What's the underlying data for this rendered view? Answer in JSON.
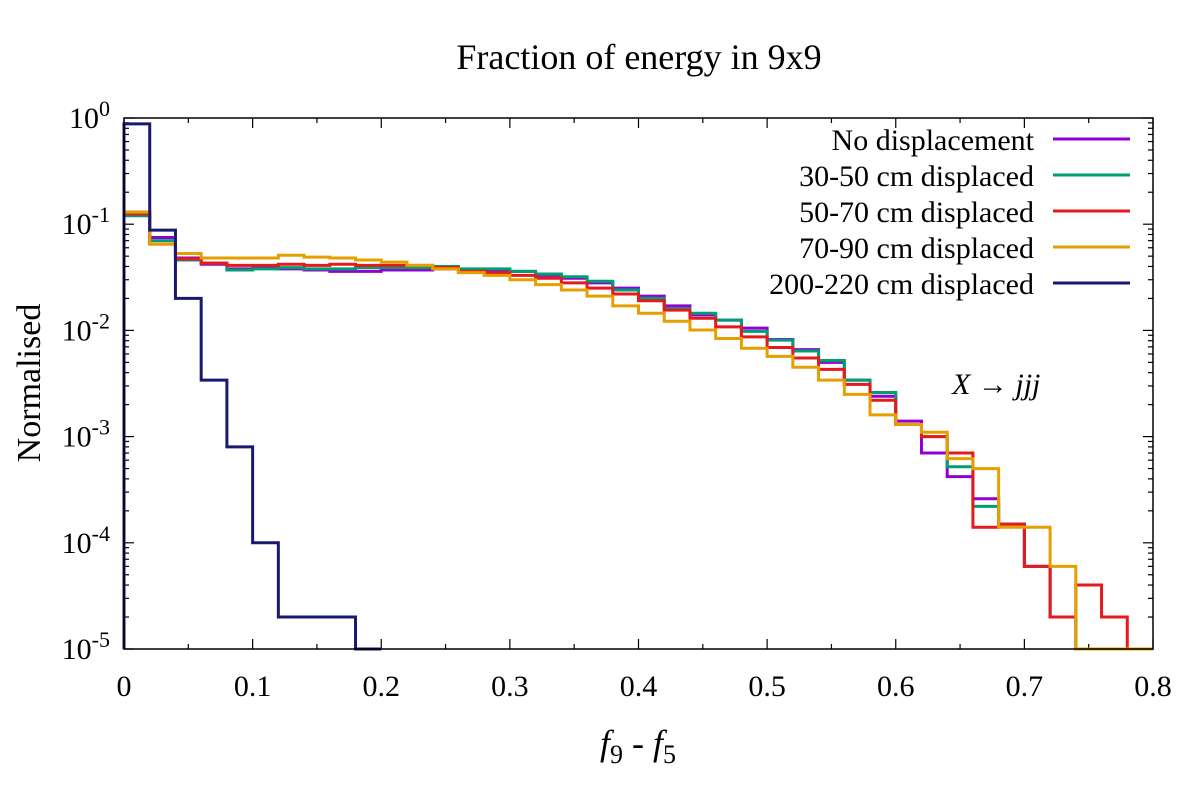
{
  "chart_data": {
    "type": "line",
    "step": true,
    "title": "Fraction of energy in 9x9",
    "xlabel_main": "f",
    "xlabel_sub1": "9",
    "xlabel_sep": " - ",
    "xlabel_main2": "f",
    "xlabel_sub2": "5",
    "ylabel": "Normalised",
    "y_scale": "log",
    "xlim": [
      0,
      0.8
    ],
    "ylim": [
      1e-05,
      1
    ],
    "x_ticks": [
      {
        "value": 0,
        "label": "0"
      },
      {
        "value": 0.1,
        "label": "0.1"
      },
      {
        "value": 0.2,
        "label": "0.2"
      },
      {
        "value": 0.3,
        "label": "0.3"
      },
      {
        "value": 0.4,
        "label": "0.4"
      },
      {
        "value": 0.5,
        "label": "0.5"
      },
      {
        "value": 0.6,
        "label": "0.6"
      },
      {
        "value": 0.7,
        "label": "0.7"
      },
      {
        "value": 0.8,
        "label": "0.8"
      }
    ],
    "y_ticks": [
      {
        "value": 1,
        "base": "10",
        "exp": "0"
      },
      {
        "value": 0.1,
        "base": "10",
        "exp": "-1"
      },
      {
        "value": 0.01,
        "base": "10",
        "exp": "-2"
      },
      {
        "value": 0.001,
        "base": "10",
        "exp": "-3"
      },
      {
        "value": 0.0001,
        "base": "10",
        "exp": "-4"
      },
      {
        "value": 1e-05,
        "base": "10",
        "exp": "-5"
      }
    ],
    "annotation": {
      "text": "X → jjj",
      "x": 0.65,
      "y": 0.0034
    },
    "legend_position": "top-right",
    "bin_width": 0.02,
    "series": [
      {
        "name": "No displacement",
        "color": "#9400D3",
        "values": [
          0.13,
          0.075,
          0.048,
          0.042,
          0.038,
          0.039,
          0.038,
          0.037,
          0.036,
          0.036,
          0.037,
          0.037,
          0.038,
          0.036,
          0.036,
          0.036,
          0.033,
          0.031,
          0.028,
          0.025,
          0.021,
          0.017,
          0.014,
          0.0125,
          0.0105,
          0.0082,
          0.0066,
          0.005,
          0.0034,
          0.0024,
          0.0014,
          0.0007,
          0.00042,
          0.00026,
          0.00015,
          6e-05,
          2e-05,
          1e-05,
          1e-05,
          1e-05
        ]
      },
      {
        "name": "30-50 cm displaced",
        "color": "#009E73",
        "values": [
          0.12,
          0.07,
          0.046,
          0.043,
          0.037,
          0.038,
          0.039,
          0.038,
          0.038,
          0.039,
          0.039,
          0.039,
          0.04,
          0.038,
          0.038,
          0.036,
          0.034,
          0.032,
          0.029,
          0.024,
          0.02,
          0.016,
          0.0145,
          0.0125,
          0.0098,
          0.0081,
          0.0064,
          0.0052,
          0.0034,
          0.0026,
          0.0013,
          0.001,
          0.00052,
          0.00022,
          0.00015,
          6e-05,
          2e-05,
          1e-05,
          1e-05,
          1e-05
        ]
      },
      {
        "name": "50-70 cm displaced",
        "color": "#E41A1C",
        "values": [
          0.125,
          0.065,
          0.047,
          0.043,
          0.041,
          0.041,
          0.042,
          0.041,
          0.042,
          0.041,
          0.041,
          0.041,
          0.039,
          0.036,
          0.035,
          0.033,
          0.031,
          0.028,
          0.025,
          0.022,
          0.019,
          0.0155,
          0.013,
          0.0108,
          0.0087,
          0.0069,
          0.0055,
          0.0043,
          0.0031,
          0.0022,
          0.0013,
          0.001,
          0.0007,
          0.00014,
          0.00015,
          6e-05,
          2e-05,
          4e-05,
          2e-05,
          1e-05
        ]
      },
      {
        "name": "70-90 cm displaced",
        "color": "#E69F00",
        "values": [
          0.13,
          0.065,
          0.053,
          0.048,
          0.048,
          0.048,
          0.051,
          0.049,
          0.048,
          0.046,
          0.044,
          0.041,
          0.038,
          0.035,
          0.033,
          0.03,
          0.027,
          0.024,
          0.021,
          0.017,
          0.0145,
          0.0122,
          0.0101,
          0.0084,
          0.0068,
          0.0057,
          0.0045,
          0.0034,
          0.0025,
          0.0016,
          0.0013,
          0.0011,
          0.00062,
          0.0005,
          0.00014,
          0.00014,
          6e-05,
          1e-05,
          1e-05,
          1e-05
        ]
      },
      {
        "name": "200-220 cm displaced",
        "color": "#191970",
        "values": [
          0.88,
          0.088,
          0.02,
          0.0034,
          0.0008,
          0.0001,
          2e-05,
          2e-05,
          2e-05,
          1e-05
        ]
      }
    ]
  }
}
